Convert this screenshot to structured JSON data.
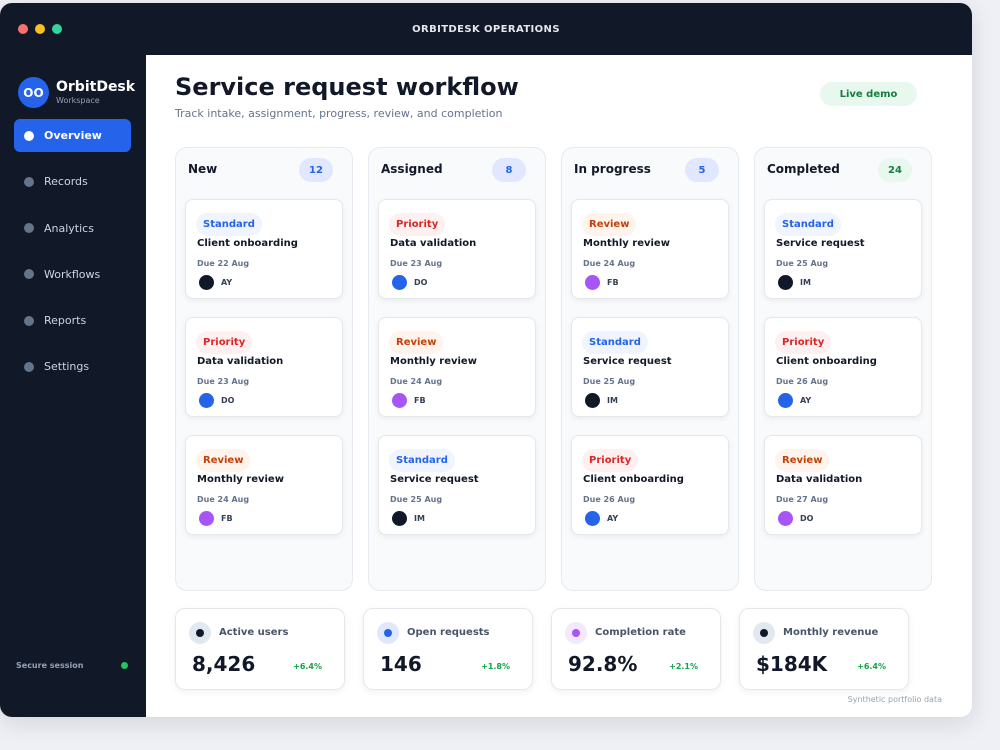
{
  "window": {
    "title": "ORBITDESK OPERATIONS"
  },
  "brand": {
    "initials": "OO",
    "name": "OrbitDesk",
    "subtitle": "Workspace"
  },
  "sidebar": {
    "items": [
      {
        "label": "Overview",
        "active": true
      },
      {
        "label": "Records",
        "active": false
      },
      {
        "label": "Analytics",
        "active": false
      },
      {
        "label": "Workflows",
        "active": false
      },
      {
        "label": "Reports",
        "active": false
      },
      {
        "label": "Settings",
        "active": false
      }
    ],
    "session_label": "Secure session"
  },
  "header": {
    "title": "Service request workflow",
    "subtitle": "Track intake, assignment, progress, review, and completion",
    "badge": "Live demo"
  },
  "board": {
    "columns": [
      {
        "title": "New",
        "count": "12",
        "count_style": "blue",
        "cards": [
          {
            "tag": "Standard",
            "tag_type": "standard",
            "title": "Client onboarding",
            "due": "Due 22 Aug",
            "assignee": "AY",
            "avatar_color": "#111827"
          },
          {
            "tag": "Priority",
            "tag_type": "priority",
            "title": "Data validation",
            "due": "Due 23 Aug",
            "assignee": "DO",
            "avatar_color": "#2563eb"
          },
          {
            "tag": "Review",
            "tag_type": "review",
            "title": "Monthly review",
            "due": "Due 24 Aug",
            "assignee": "FB",
            "avatar_color": "#a855f7"
          }
        ]
      },
      {
        "title": "Assigned",
        "count": "8",
        "count_style": "blue",
        "cards": [
          {
            "tag": "Priority",
            "tag_type": "priority",
            "title": "Data validation",
            "due": "Due 23 Aug",
            "assignee": "DO",
            "avatar_color": "#2563eb"
          },
          {
            "tag": "Review",
            "tag_type": "review",
            "title": "Monthly review",
            "due": "Due 24 Aug",
            "assignee": "FB",
            "avatar_color": "#a855f7"
          },
          {
            "tag": "Standard",
            "tag_type": "standard",
            "title": "Service request",
            "due": "Due 25 Aug",
            "assignee": "IM",
            "avatar_color": "#111827"
          }
        ]
      },
      {
        "title": "In progress",
        "count": "5",
        "count_style": "blue",
        "cards": [
          {
            "tag": "Review",
            "tag_type": "review",
            "title": "Monthly review",
            "due": "Due 24 Aug",
            "assignee": "FB",
            "avatar_color": "#a855f7"
          },
          {
            "tag": "Standard",
            "tag_type": "standard",
            "title": "Service request",
            "due": "Due 25 Aug",
            "assignee": "IM",
            "avatar_color": "#111827"
          },
          {
            "tag": "Priority",
            "tag_type": "priority",
            "title": "Client onboarding",
            "due": "Due 26 Aug",
            "assignee": "AY",
            "avatar_color": "#2563eb"
          }
        ]
      },
      {
        "title": "Completed",
        "count": "24",
        "count_style": "green",
        "cards": [
          {
            "tag": "Standard",
            "tag_type": "standard",
            "title": "Service request",
            "due": "Due 25 Aug",
            "assignee": "IM",
            "avatar_color": "#111827"
          },
          {
            "tag": "Priority",
            "tag_type": "priority",
            "title": "Client onboarding",
            "due": "Due 26 Aug",
            "assignee": "AY",
            "avatar_color": "#2563eb"
          },
          {
            "tag": "Review",
            "tag_type": "review",
            "title": "Data validation",
            "due": "Due 27 Aug",
            "assignee": "DO",
            "avatar_color": "#a855f7"
          }
        ]
      }
    ]
  },
  "stats": [
    {
      "label": "Active users",
      "value": "8,426",
      "delta": "+6.4%",
      "icon": "users-icon",
      "icon_color": "#111827",
      "icon_bg": "#e2e8f0"
    },
    {
      "label": "Open requests",
      "value": "146",
      "delta": "+1.8%",
      "icon": "requests-icon",
      "icon_color": "#2563eb",
      "icon_bg": "#e0e7ff"
    },
    {
      "label": "Completion rate",
      "value": "92.8%",
      "delta": "+2.1%",
      "icon": "completion-icon",
      "icon_color": "#a855f7",
      "icon_bg": "#f3e8ff"
    },
    {
      "label": "Monthly revenue",
      "value": "$184K",
      "delta": "+6.4%",
      "icon": "revenue-icon",
      "icon_color": "#111827",
      "icon_bg": "#e2e8f0"
    }
  ],
  "footer": {
    "note": "Synthetic portfolio data"
  }
}
